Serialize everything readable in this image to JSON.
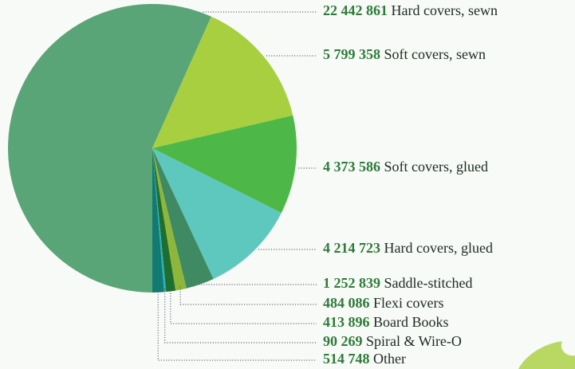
{
  "chart_data": {
    "type": "pie",
    "categories": [
      "Hard covers, sewn",
      "Soft covers, sewn",
      "Soft covers, glued",
      "Hard covers, glued",
      "Saddle-stitched",
      "Flexi covers",
      "Board Books",
      "Spiral & Wire-O",
      "Other"
    ],
    "values": [
      22442861,
      5799358,
      4373586,
      4214723,
      1252839,
      484086,
      413896,
      90269,
      514748
    ],
    "value_labels": [
      "22 442 861",
      "5 799 358",
      "4 373 586",
      "4 214 723",
      "1 252 839",
      "484 086",
      "413 896",
      "90 269",
      "514 748"
    ],
    "colors": [
      "#5aa577",
      "#a8cf3f",
      "#4db848",
      "#5ec8bf",
      "#3f8a63",
      "#8db63a",
      "#1f6e2e",
      "#1fb5c0",
      "#137a72"
    ]
  }
}
